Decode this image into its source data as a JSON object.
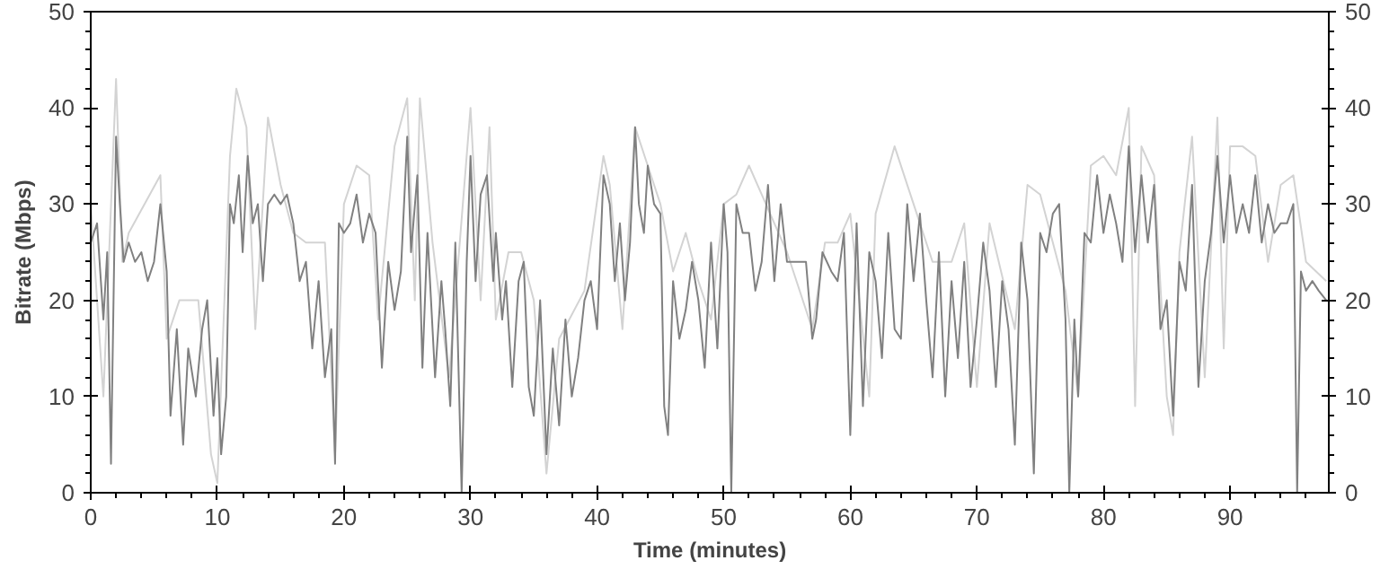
{
  "chart_data": {
    "type": "line",
    "xlabel": "Time (minutes)",
    "ylabel": "Bitrate (Mbps)",
    "xlim": [
      0,
      97.8
    ],
    "ylim": [
      0,
      50
    ],
    "y2lim": [
      0,
      50
    ],
    "xticks": [
      0,
      {
        "value": 2,
        "label": null
      },
      {
        "value": 4,
        "label": null
      },
      {
        "value": 6,
        "label": null
      },
      {
        "value": 8,
        "label": null
      },
      10,
      {
        "value": 12,
        "label": null
      },
      {
        "value": 14,
        "label": null
      },
      {
        "value": 16,
        "label": null
      },
      {
        "value": 18,
        "label": null
      },
      20,
      {
        "value": 22,
        "label": null
      },
      {
        "value": 24,
        "label": null
      },
      {
        "value": 26,
        "label": null
      },
      {
        "value": 28,
        "label": null
      },
      30,
      {
        "value": 32,
        "label": null
      },
      {
        "value": 34,
        "label": null
      },
      {
        "value": 36,
        "label": null
      },
      {
        "value": 38,
        "label": null
      },
      40,
      {
        "value": 42,
        "label": null
      },
      {
        "value": 44,
        "label": null
      },
      {
        "value": 46,
        "label": null
      },
      {
        "value": 48,
        "label": null
      },
      50,
      {
        "value": 52,
        "label": null
      },
      {
        "value": 54,
        "label": null
      },
      {
        "value": 56,
        "label": null
      },
      {
        "value": 58,
        "label": null
      },
      60,
      {
        "value": 62,
        "label": null
      },
      {
        "value": 64,
        "label": null
      },
      {
        "value": 66,
        "label": null
      },
      {
        "value": 68,
        "label": null
      },
      70,
      {
        "value": 72,
        "label": null
      },
      {
        "value": 74,
        "label": null
      },
      {
        "value": 76,
        "label": null
      },
      {
        "value": 78,
        "label": null
      },
      80,
      {
        "value": 82,
        "label": null
      },
      {
        "value": 84,
        "label": null
      },
      {
        "value": 86,
        "label": null
      },
      {
        "value": 88,
        "label": null
      },
      90,
      {
        "value": 92,
        "label": null
      },
      {
        "value": 94,
        "label": null
      },
      {
        "value": 96,
        "label": null
      }
    ],
    "yticks": [
      0,
      {
        "value": 2,
        "label": null
      },
      {
        "value": 4,
        "label": null
      },
      {
        "value": 6,
        "label": null
      },
      {
        "value": 8,
        "label": null
      },
      10,
      {
        "value": 12,
        "label": null
      },
      {
        "value": 14,
        "label": null
      },
      {
        "value": 16,
        "label": null
      },
      {
        "value": 18,
        "label": null
      },
      20,
      {
        "value": 22,
        "label": null
      },
      {
        "value": 24,
        "label": null
      },
      {
        "value": 26,
        "label": null
      },
      {
        "value": 28,
        "label": null
      },
      30,
      {
        "value": 32,
        "label": null
      },
      {
        "value": 34,
        "label": null
      },
      {
        "value": 36,
        "label": null
      },
      {
        "value": 38,
        "label": null
      },
      40,
      {
        "value": 42,
        "label": null
      },
      {
        "value": 44,
        "label": null
      },
      {
        "value": 46,
        "label": null
      },
      {
        "value": 48,
        "label": null
      },
      50
    ],
    "y2ticks": [
      0,
      {
        "value": 2,
        "label": null
      },
      {
        "value": 4,
        "label": null
      },
      {
        "value": 6,
        "label": null
      },
      {
        "value": 8,
        "label": null
      },
      10,
      {
        "value": 12,
        "label": null
      },
      {
        "value": 14,
        "label": null
      },
      {
        "value": 16,
        "label": null
      },
      {
        "value": 18,
        "label": null
      },
      20,
      {
        "value": 22,
        "label": null
      },
      {
        "value": 24,
        "label": null
      },
      {
        "value": 26,
        "label": null
      },
      {
        "value": 28,
        "label": null
      },
      30,
      {
        "value": 32,
        "label": null
      },
      {
        "value": 34,
        "label": null
      },
      {
        "value": 36,
        "label": null
      },
      {
        "value": 38,
        "label": null
      },
      40,
      {
        "value": 42,
        "label": null
      },
      {
        "value": 44,
        "label": null
      },
      {
        "value": 46,
        "label": null
      },
      {
        "value": 48,
        "label": null
      },
      50
    ],
    "grid": false,
    "marker": "none",
    "line_style": "solid",
    "series": [
      {
        "color": "#d3d3d3",
        "x": [
          0,
          1,
          2,
          2.5,
          3,
          5.5,
          6,
          7,
          8.5,
          9.5,
          10,
          11,
          11.5,
          12.3,
          13,
          14,
          15,
          16,
          17,
          18.5,
          19.3,
          20,
          21,
          22,
          22.7,
          24,
          25,
          25.6,
          26,
          27,
          28.3,
          30,
          30.8,
          31.5,
          32,
          33,
          34,
          35,
          36,
          37,
          39,
          40.5,
          41,
          42,
          43,
          44,
          45,
          46,
          47,
          48,
          49,
          50,
          51,
          52,
          53,
          55,
          57,
          58,
          59,
          60,
          61.5,
          62,
          63.5,
          65,
          66.5,
          68,
          69,
          70,
          71,
          73,
          74,
          75,
          76,
          77,
          78,
          79,
          80,
          81,
          82,
          82.5,
          83,
          84,
          85,
          85.5,
          86,
          87,
          88,
          89,
          89.5,
          90,
          91,
          92,
          93,
          94,
          95,
          96,
          97.6
        ],
        "values": [
          30,
          10,
          43,
          24,
          27,
          33,
          16,
          20,
          20,
          4,
          1,
          35,
          42,
          38,
          17,
          39,
          32,
          27,
          26,
          26,
          4,
          30,
          34,
          33,
          18,
          36,
          41,
          20,
          41,
          26,
          12,
          40,
          20,
          38,
          18,
          25,
          25,
          20,
          2,
          16,
          21,
          35,
          32,
          17,
          38,
          34,
          30,
          23,
          27,
          22,
          18,
          30,
          31,
          34,
          31,
          25,
          17,
          26,
          26,
          29,
          10,
          29,
          36,
          30,
          24,
          24,
          28,
          11,
          28,
          17,
          32,
          31,
          26,
          21,
          10,
          34,
          35,
          33,
          40,
          9,
          36,
          33,
          10,
          6,
          25,
          37,
          12,
          39,
          15,
          36,
          36,
          35,
          24,
          32,
          33,
          24,
          22
        ]
      },
      {
        "color": "#808080",
        "x": [
          0,
          0.5,
          1,
          1.3,
          1.6,
          2,
          2.3,
          2.6,
          3,
          3.5,
          4,
          4.5,
          5,
          5.5,
          6,
          6.3,
          6.8,
          7.3,
          7.7,
          8.3,
          8.8,
          9.2,
          9.7,
          10,
          10.3,
          10.7,
          11,
          11.3,
          11.7,
          12,
          12.4,
          12.8,
          13.2,
          13.6,
          14,
          14.5,
          15,
          15.5,
          16,
          16.5,
          17,
          17.5,
          18,
          18.5,
          19,
          19.3,
          19.6,
          20,
          20.5,
          21,
          21.5,
          22,
          22.5,
          23,
          23.5,
          24,
          24.5,
          25,
          25.3,
          25.8,
          26.2,
          26.6,
          27.2,
          27.7,
          28,
          28.4,
          28.8,
          29.3,
          29.7,
          30,
          30.4,
          30.8,
          31.3,
          31.8,
          32,
          32.5,
          32.8,
          33.3,
          33.8,
          34.2,
          34.6,
          35,
          35.5,
          36,
          36.5,
          37,
          37.5,
          38,
          38.5,
          39,
          39.5,
          40,
          40.5,
          41,
          41.4,
          41.8,
          42.2,
          42.6,
          43,
          43.3,
          43.7,
          44,
          44.5,
          45,
          45.3,
          45.6,
          46,
          46.5,
          47,
          47.5,
          48,
          48.5,
          49,
          49.5,
          50,
          50.3,
          50.6,
          51,
          51.5,
          52,
          52.5,
          53,
          53.5,
          54,
          54.5,
          55,
          56,
          56.5,
          57,
          57.3,
          57.8,
          58.5,
          59,
          59.5,
          60,
          60.5,
          61,
          61.5,
          62,
          62.5,
          63,
          63.5,
          64,
          64.5,
          65,
          65.5,
          66,
          66.5,
          67,
          67.5,
          68,
          68.5,
          69,
          69.5,
          70,
          70.5,
          71,
          71.5,
          72,
          72.5,
          73,
          73.5,
          74,
          74.5,
          75,
          75.5,
          76,
          76.5,
          77,
          77.3,
          77.7,
          78,
          78.5,
          79,
          79.5,
          80,
          80.5,
          81,
          81.5,
          82,
          82.5,
          83,
          83.5,
          84,
          84.5,
          85,
          85.5,
          86,
          86.5,
          87,
          87.5,
          88,
          88.5,
          89,
          89.5,
          90,
          90.5,
          91,
          91.5,
          92,
          92.5,
          93,
          93.5,
          94,
          94.5,
          95,
          95.3,
          95.6,
          96,
          96.5,
          97,
          97.6
        ],
        "values": [
          26,
          28,
          18,
          25,
          3,
          37,
          30,
          24,
          26,
          24,
          25,
          22,
          24,
          30,
          23,
          8,
          17,
          5,
          15,
          10,
          17,
          20,
          8,
          14,
          4,
          10,
          30,
          28,
          33,
          25,
          35,
          28,
          30,
          22,
          30,
          31,
          30,
          31,
          28,
          22,
          24,
          15,
          22,
          12,
          17,
          3,
          28,
          27,
          28,
          31,
          26,
          29,
          27,
          13,
          24,
          19,
          23,
          37,
          25,
          33,
          13,
          27,
          12,
          22,
          17,
          9,
          26,
          0,
          24,
          35,
          22,
          31,
          33,
          22,
          27,
          18,
          22,
          11,
          22,
          24,
          11,
          8,
          20,
          4,
          15,
          7,
          18,
          10,
          14,
          20,
          22,
          17,
          33,
          30,
          22,
          28,
          20,
          26,
          38,
          30,
          27,
          34,
          30,
          29,
          9,
          6,
          22,
          16,
          19,
          24,
          20,
          13,
          26,
          15,
          30,
          25,
          0,
          30,
          27,
          27,
          21,
          24,
          32,
          22,
          30,
          24,
          24,
          24,
          16,
          18,
          25,
          23,
          22,
          27,
          6,
          28,
          9,
          25,
          22,
          14,
          27,
          17,
          16,
          30,
          22,
          29,
          20,
          12,
          25,
          10,
          22,
          14,
          24,
          11,
          18,
          26,
          21,
          11,
          22,
          17,
          5,
          26,
          20,
          2,
          27,
          25,
          29,
          30,
          18,
          0,
          18,
          10,
          27,
          26,
          33,
          27,
          31,
          28,
          24,
          36,
          25,
          33,
          26,
          32,
          17,
          20,
          8,
          24,
          21,
          32,
          11,
          22,
          27,
          35,
          26,
          33,
          27,
          30,
          27,
          33,
          26,
          30,
          27,
          28,
          28,
          30,
          0,
          23,
          21,
          22,
          21,
          20
        ]
      }
    ]
  }
}
